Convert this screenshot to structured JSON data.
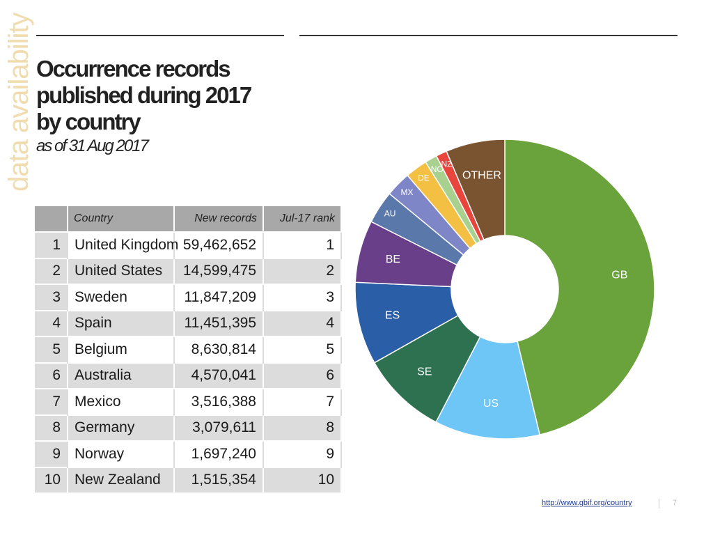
{
  "side_label": "data availability",
  "title_lines": [
    "Occurrence records",
    "published during 2017",
    "by country"
  ],
  "subtitle": "as of 31 Aug 2017",
  "table": {
    "headers": {
      "index": "",
      "country": "Country",
      "records": "New records",
      "rank": "Jul-17 rank"
    },
    "rows": [
      {
        "index": "1",
        "country": "United Kingdom",
        "records": "59,462,652",
        "rank": "1"
      },
      {
        "index": "2",
        "country": "United States",
        "records": "14,599,475",
        "rank": "2"
      },
      {
        "index": "3",
        "country": "Sweden",
        "records": "11,847,209",
        "rank": "3"
      },
      {
        "index": "4",
        "country": "Spain",
        "records": "11,451,395",
        "rank": "4"
      },
      {
        "index": "5",
        "country": "Belgium",
        "records": "8,630,814",
        "rank": "5"
      },
      {
        "index": "6",
        "country": "Australia",
        "records": "4,570,041",
        "rank": "6"
      },
      {
        "index": "7",
        "country": "Mexico",
        "records": "3,516,388",
        "rank": "7"
      },
      {
        "index": "8",
        "country": "Germany",
        "records": "3,079,611",
        "rank": "8"
      },
      {
        "index": "9",
        "country": "Norway",
        "records": "1,697,240",
        "rank": "9"
      },
      {
        "index": "10",
        "country": "New Zealand",
        "records": "1,515,354",
        "rank": "10"
      }
    ]
  },
  "chart_data": {
    "type": "pie",
    "donut": true,
    "labels": [
      "GB",
      "US",
      "SE",
      "ES",
      "BE",
      "AU",
      "MX",
      "DE",
      "NO",
      "NZ",
      "OTHER"
    ],
    "values": [
      59462652,
      14599475,
      11847209,
      11451395,
      8630814,
      4570041,
      3516388,
      3079611,
      1697240,
      1515354,
      8200000
    ],
    "colors": [
      "#6aa23c",
      "#6ec6f7",
      "#2e7150",
      "#2a5ea7",
      "#6a3f8a",
      "#5b78aa",
      "#7e86c7",
      "#f4c043",
      "#a8d08e",
      "#e8453c",
      "#7a5431"
    ]
  },
  "footer": {
    "link": "http://www.gbif.org/country",
    "page": "7"
  }
}
